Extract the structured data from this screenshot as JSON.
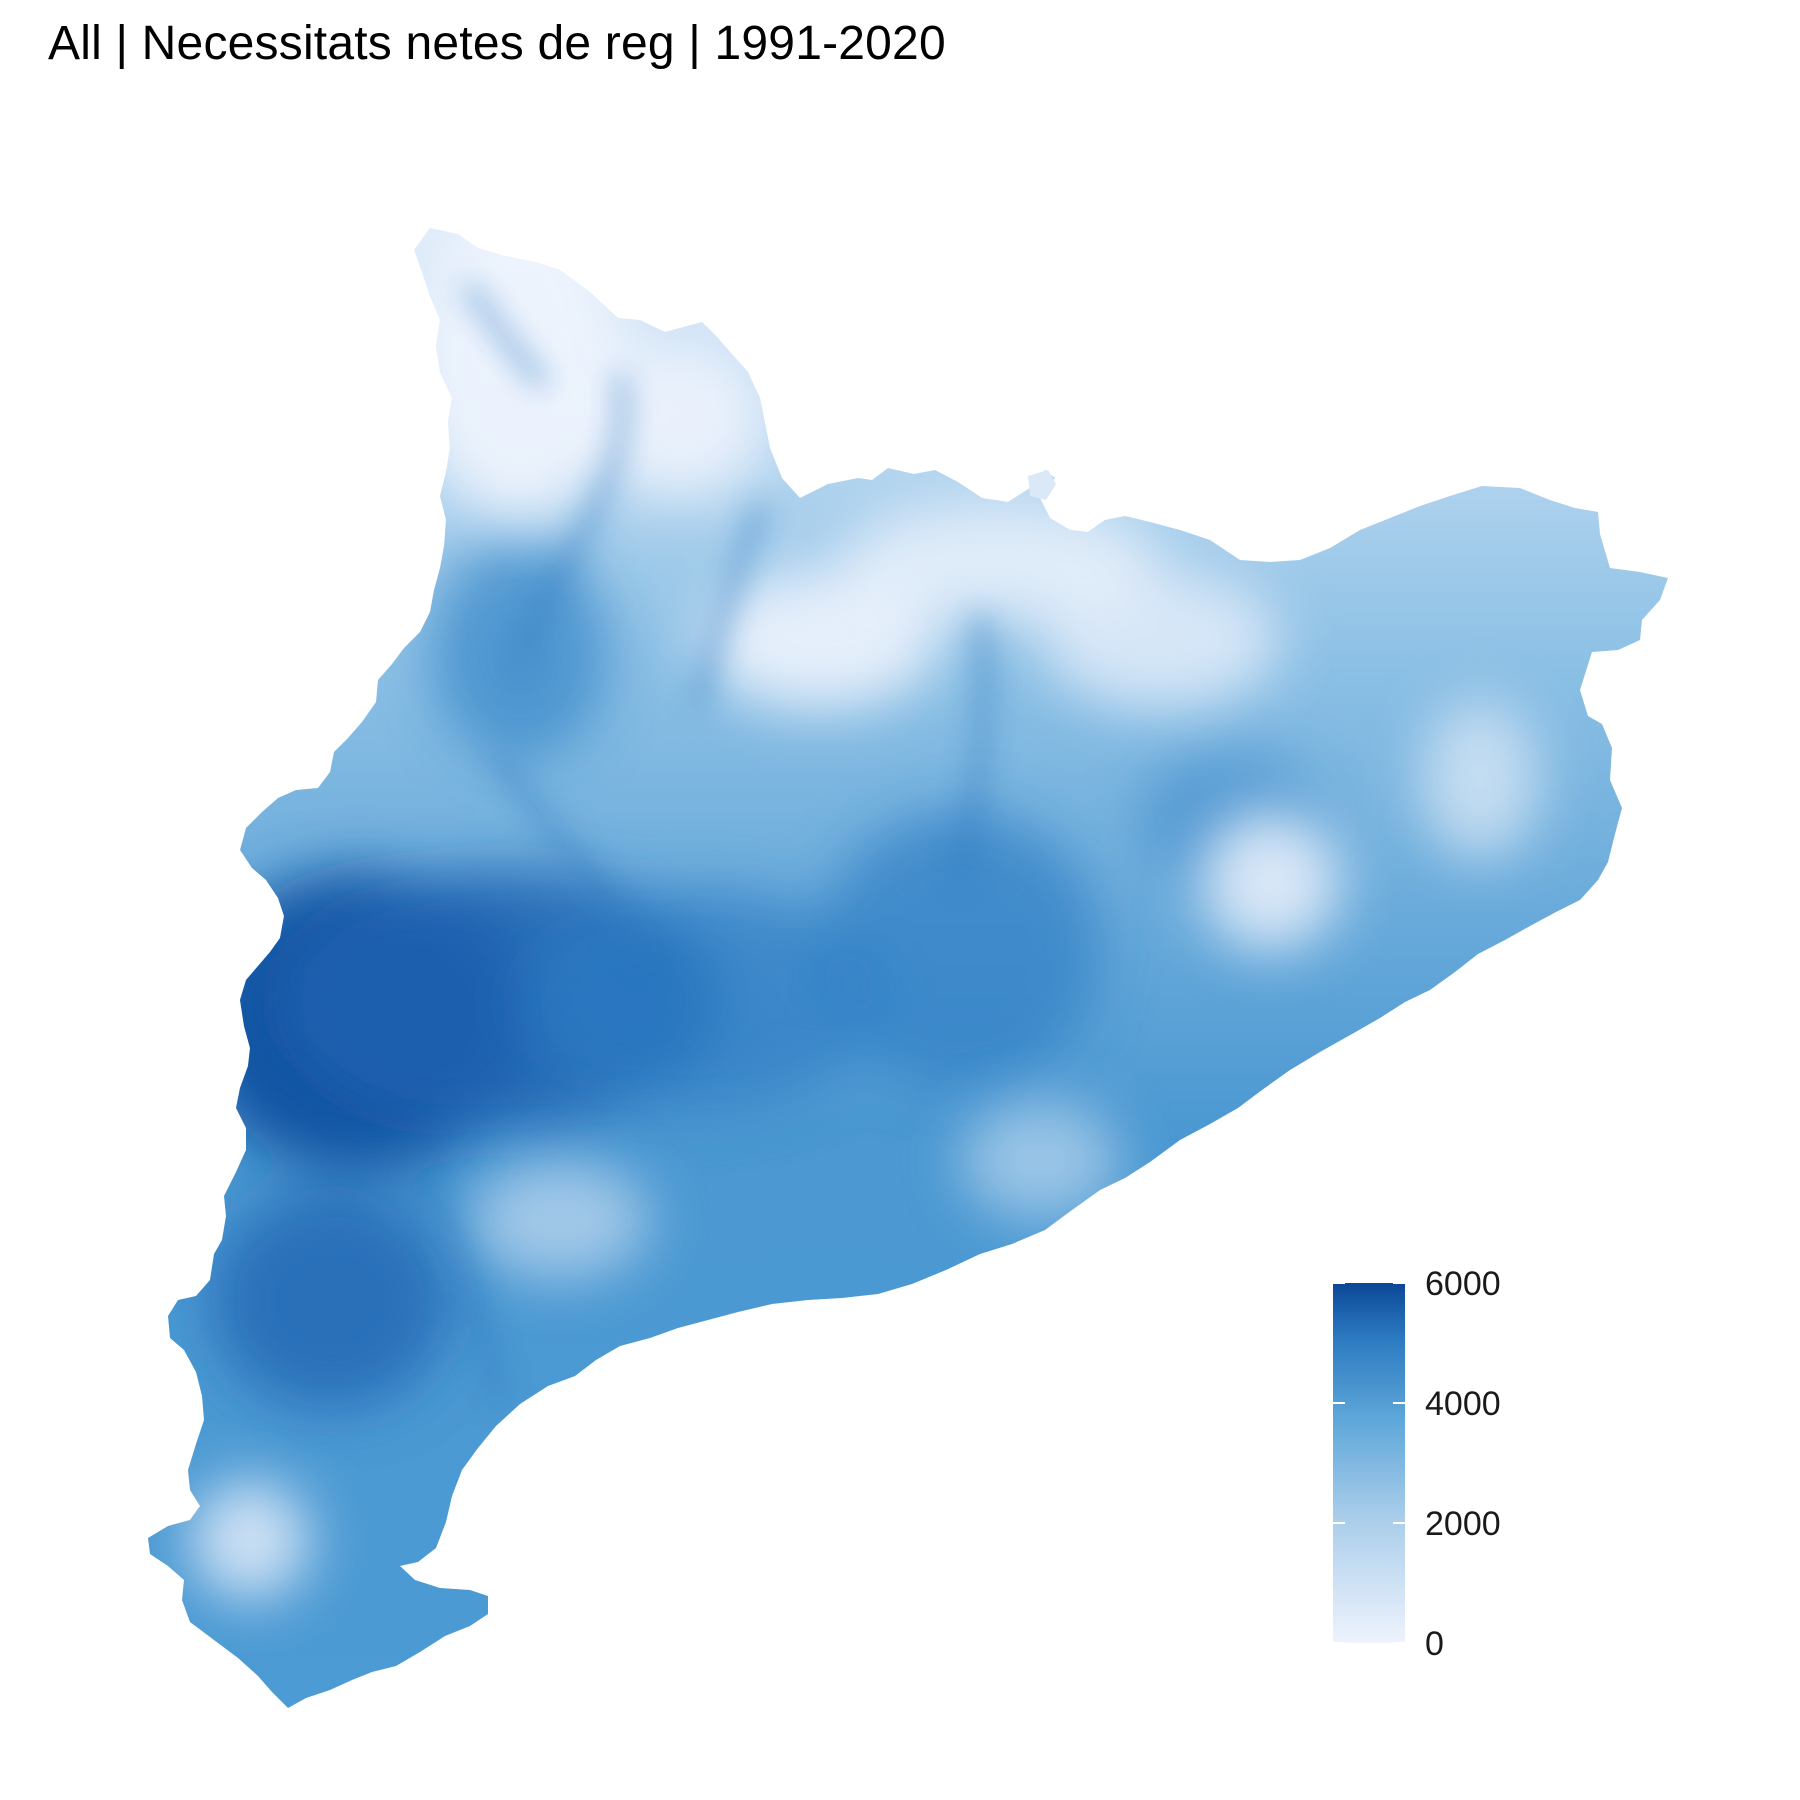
{
  "title": "All | Necessitats netes de reg | 1991-2020",
  "legend": {
    "min": 0,
    "max": 6000,
    "ticks": [
      {
        "value": 0,
        "label": "0"
      },
      {
        "value": 2000,
        "label": "2000"
      },
      {
        "value": 4000,
        "label": "4000"
      },
      {
        "value": 6000,
        "label": "6000"
      }
    ],
    "colors": {
      "low": "#eef3fd",
      "mid": "#6aaede",
      "high": "#0c4797"
    }
  }
}
